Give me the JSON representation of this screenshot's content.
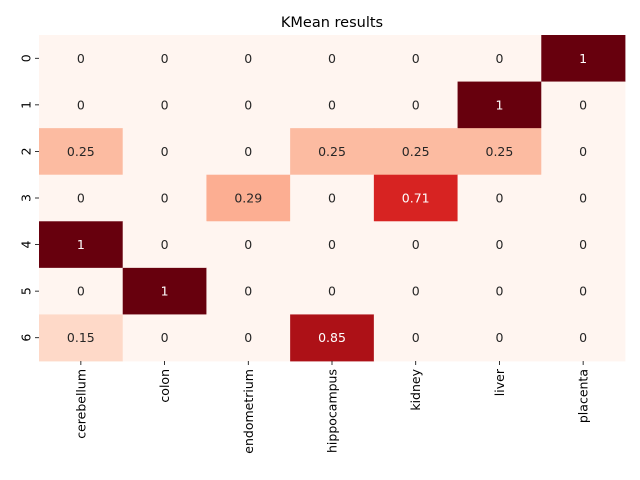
{
  "chart_data": {
    "type": "heatmap",
    "title": "KMean results",
    "xlabel": "",
    "ylabel": "",
    "x_labels": [
      "cerebellum",
      "colon",
      "endometrium",
      "hippocampus",
      "kidney",
      "liver",
      "placenta"
    ],
    "y_labels": [
      "0",
      "1",
      "2",
      "3",
      "4",
      "5",
      "6"
    ],
    "values": [
      [
        "0",
        "0",
        "0",
        "0",
        "0",
        "0",
        "1"
      ],
      [
        "0",
        "0",
        "0",
        "0",
        "0",
        "1",
        "0"
      ],
      [
        "0.25",
        "0",
        "0",
        "0.25",
        "0.25",
        "0.25",
        "0"
      ],
      [
        "0",
        "0",
        "0.29",
        "0",
        "0.71",
        "0",
        "0"
      ],
      [
        "1",
        "0",
        "0",
        "0",
        "0",
        "0",
        "0"
      ],
      [
        "0",
        "1",
        "0",
        "0",
        "0",
        "0",
        "0"
      ],
      [
        "0.15",
        "0",
        "0",
        "0.85",
        "0",
        "0",
        "0"
      ]
    ],
    "colormap": "Reds",
    "value_range": [
      0,
      1
    ],
    "colorbar": false
  }
}
